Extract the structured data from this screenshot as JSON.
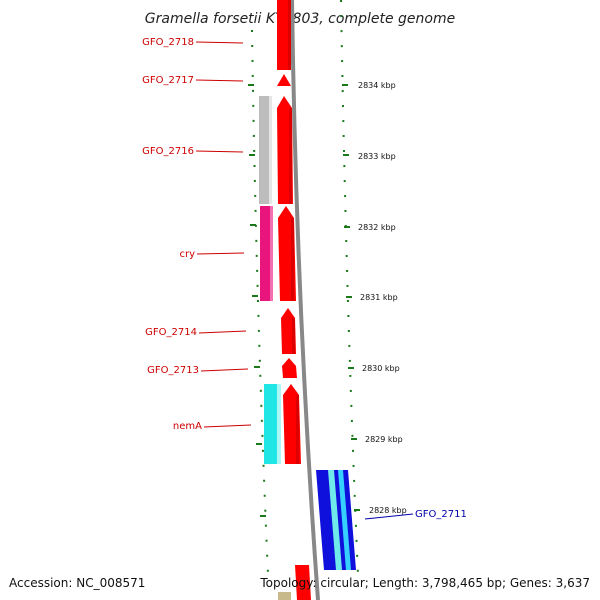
{
  "title": "Gramella forsetii KT0803, complete genome",
  "accession": "Accession: NC_008571",
  "summary": "Topology: circular; Length: 3,798,465 bp; Genes: 3,637",
  "colors": {
    "cds_red": "#ff0000",
    "cds_dark_red": "#b30000",
    "label_red": "#cc0000",
    "label_blue": "#0000aa",
    "tick_green": "#1a7a1a",
    "backbone": "#888888",
    "gray_track": "#bdbdbd",
    "magenta_track": "#e8157d",
    "cyan_track": "#20e6e6",
    "blue_track": "#1010dd"
  },
  "genes": [
    {
      "name": "GFO_2718",
      "color": "red"
    },
    {
      "name": "GFO_2717",
      "color": "red"
    },
    {
      "name": "GFO_2716",
      "color": "red"
    },
    {
      "name": "cry",
      "color": "red"
    },
    {
      "name": "GFO_2714",
      "color": "red"
    },
    {
      "name": "GFO_2713",
      "color": "red"
    },
    {
      "name": "nemA",
      "color": "red"
    },
    {
      "name": "GFO_2711",
      "color": "blue"
    }
  ],
  "ticks": [
    "2834 kbp",
    "2833 kbp",
    "2832 kbp",
    "2831 kbp",
    "2830 kbp",
    "2829 kbp",
    "2828 kbp"
  ]
}
